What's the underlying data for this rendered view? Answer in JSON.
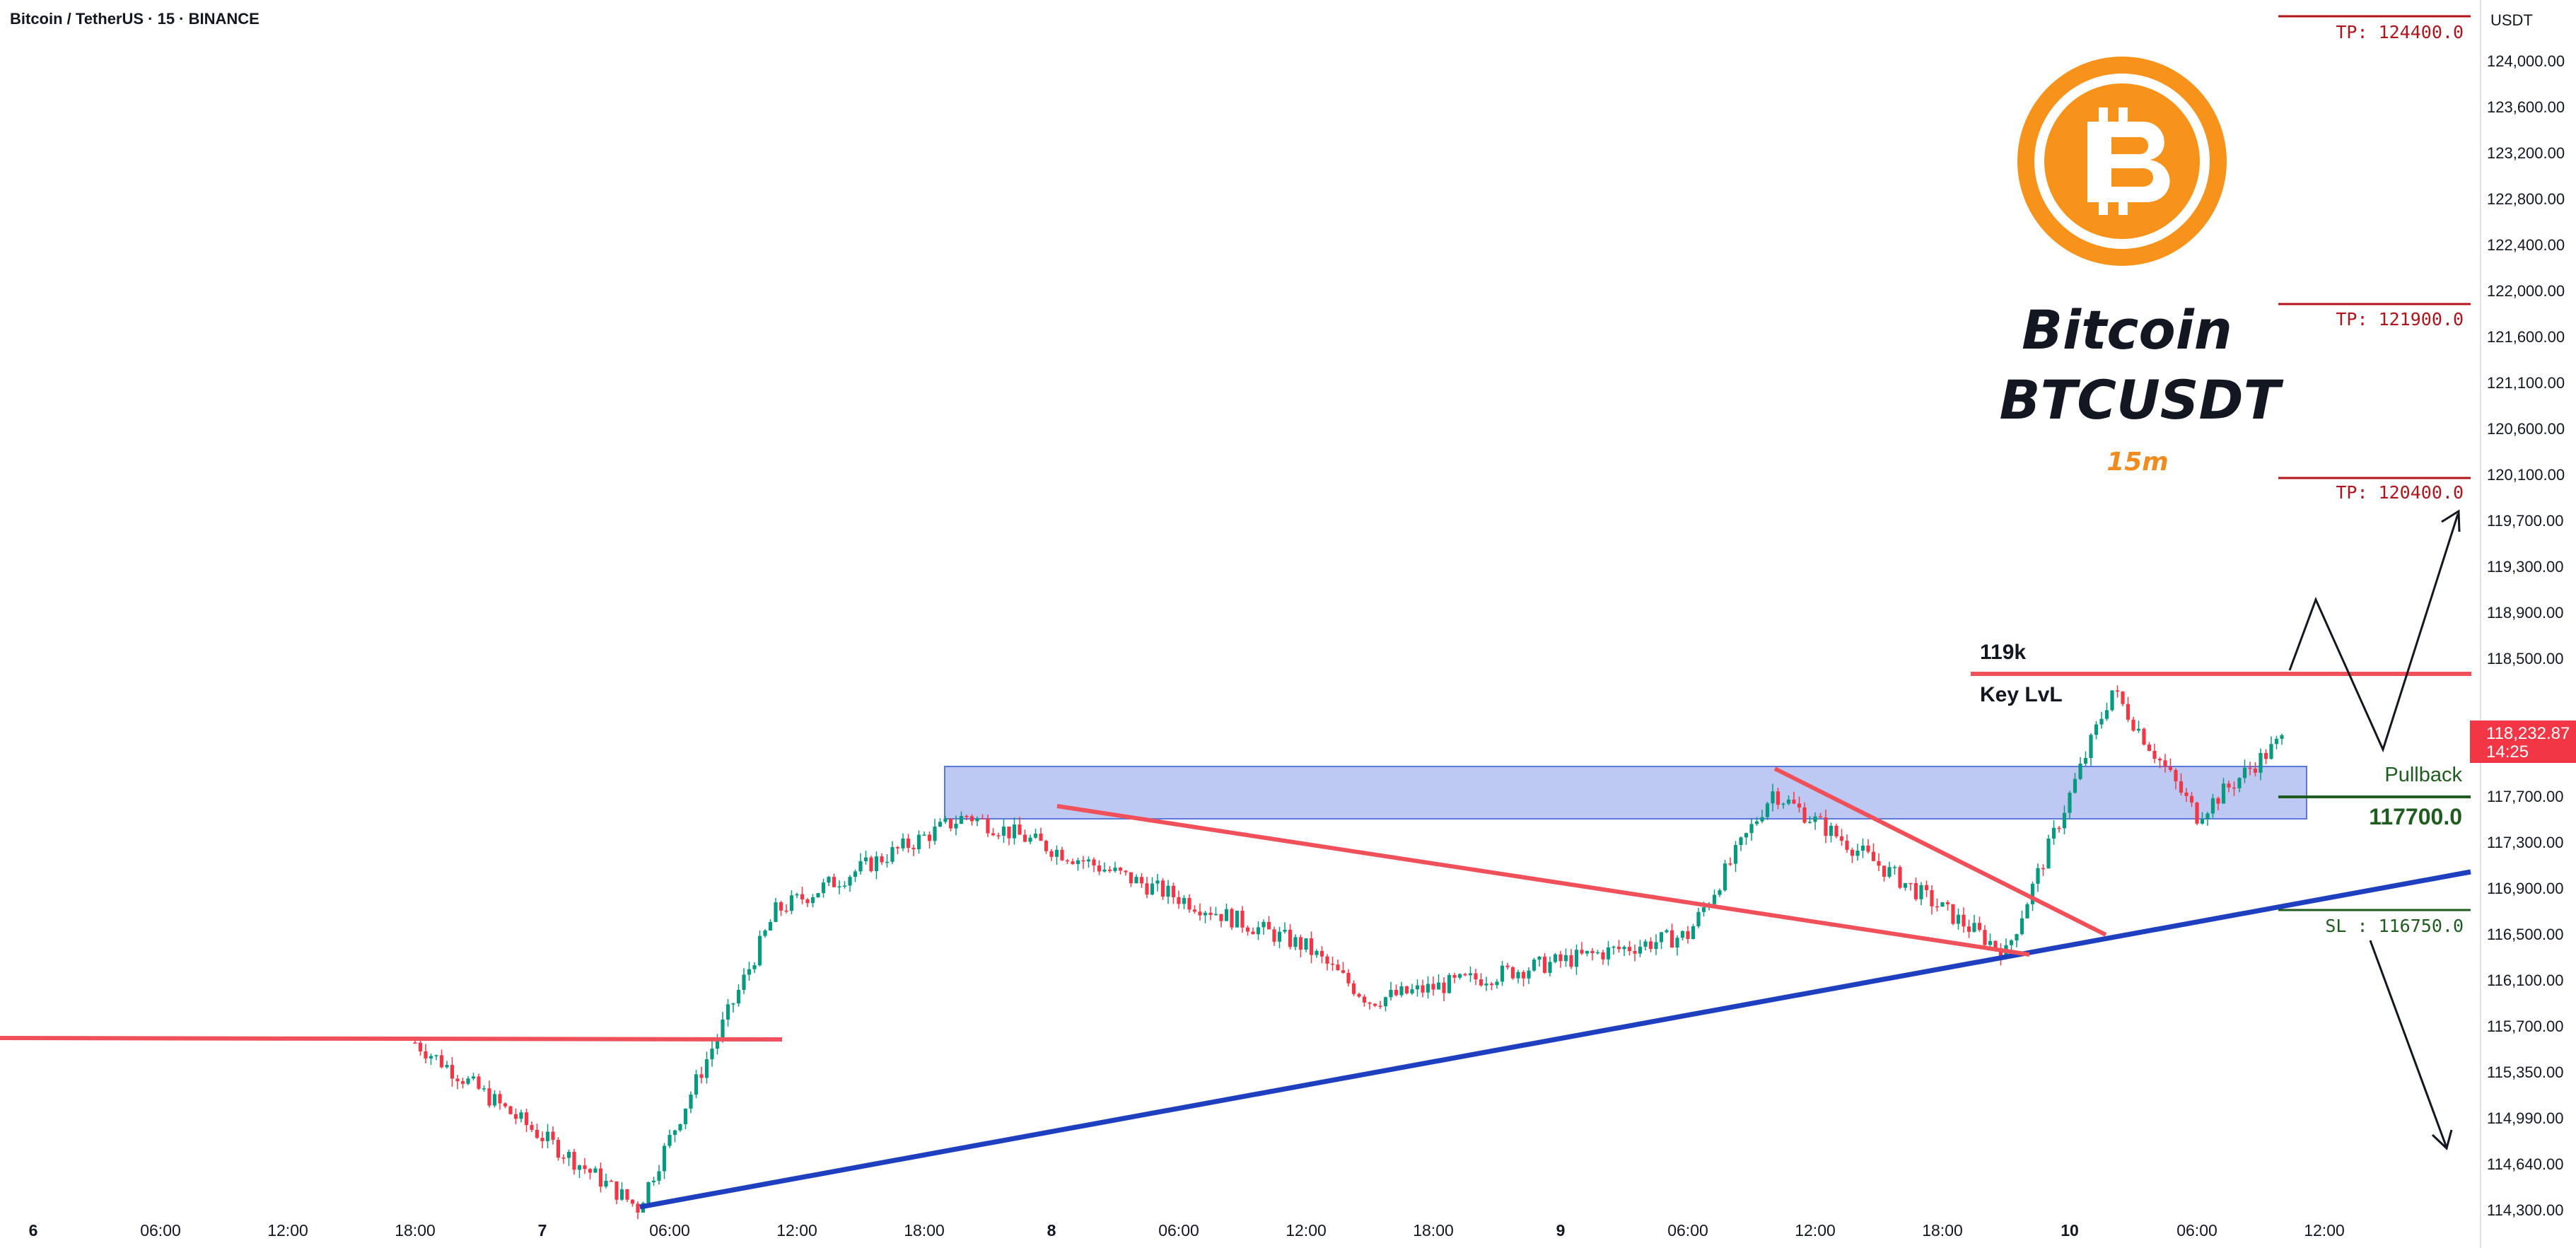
{
  "header": {
    "symbol_title": "Bitcoin / TetherUS · 15 · BINANCE"
  },
  "price_axis": {
    "unit": "USDT",
    "ticks": [
      "124,000.00",
      "123,600.00",
      "123,200.00",
      "122,800.00",
      "122,400.00",
      "122,000.00",
      "121,600.00",
      "121,100.00",
      "120,600.00",
      "120,100.00",
      "119,700.00",
      "119,300.00",
      "118,900.00",
      "118,500.00",
      "117,700.00",
      "117,300.00",
      "116,900.00",
      "116,500.00",
      "116,100.00",
      "115,700.00",
      "115,350.00",
      "114,990.00",
      "114,640.00",
      "114,300.00"
    ]
  },
  "time_axis": {
    "labels": [
      "6",
      "06:00",
      "12:00",
      "18:00",
      "7",
      "06:00",
      "12:00",
      "18:00",
      "8",
      "06:00",
      "12:00",
      "18:00",
      "9",
      "06:00",
      "12:00",
      "18:00",
      "10",
      "06:00",
      "12:00"
    ]
  },
  "current_price": {
    "value": "118,232.87",
    "countdown": "14:25",
    "color": "#f23645"
  },
  "annotations": {
    "tp1": "TP: 124400.0",
    "tp2": "TP: 121900.0",
    "tp3": "TP: 120400.0",
    "key_level_value": "119k",
    "key_level_text": "Key LvL",
    "pullback": "Pullback",
    "entry": "117700.0",
    "sl": "SL : 116750.0"
  },
  "branding": {
    "title_line1": "Bitcoin",
    "title_line2": "BTCUSDT",
    "timeframe": "15m",
    "logo_color": "#f7931a"
  },
  "colors": {
    "bull": "#089981",
    "bear": "#f23645",
    "trendline": "#1e3fbf",
    "resistance": "#f0505a",
    "zone": "#7e94e8",
    "tp": "#b3131b",
    "sl": "#1f5c1f"
  },
  "chart_data": {
    "type": "candlestick",
    "symbol": "BTCUSDT",
    "interval": "15",
    "x_range": [
      "6",
      "10 12:00"
    ],
    "ylim": [
      114300,
      124200
    ],
    "price_path": [
      {
        "t": "6 18:00",
        "price": 115700
      },
      {
        "t": "7 04:30",
        "price": 114320
      },
      {
        "t": "7 11:00",
        "price": 116800
      },
      {
        "t": "7 20:00",
        "price": 117600
      },
      {
        "t": "8 12:00",
        "price": 116500
      },
      {
        "t": "8 15:00",
        "price": 116050
      },
      {
        "t": "9 06:00",
        "price": 116600
      },
      {
        "t": "9 10:00",
        "price": 117800
      },
      {
        "t": "9 21:00",
        "price": 116450
      },
      {
        "t": "10 02:00",
        "price": 118650
      },
      {
        "t": "10 06:00",
        "price": 117600
      },
      {
        "t": "10 10:00",
        "price": 118233
      }
    ],
    "levels": {
      "tp1": 124400,
      "tp2": 121900,
      "tp3": 120400,
      "key_level": 118700,
      "entry": 117700,
      "sl": 116750,
      "resistance_left": 115680
    },
    "zone": [
      117500,
      117950
    ]
  }
}
